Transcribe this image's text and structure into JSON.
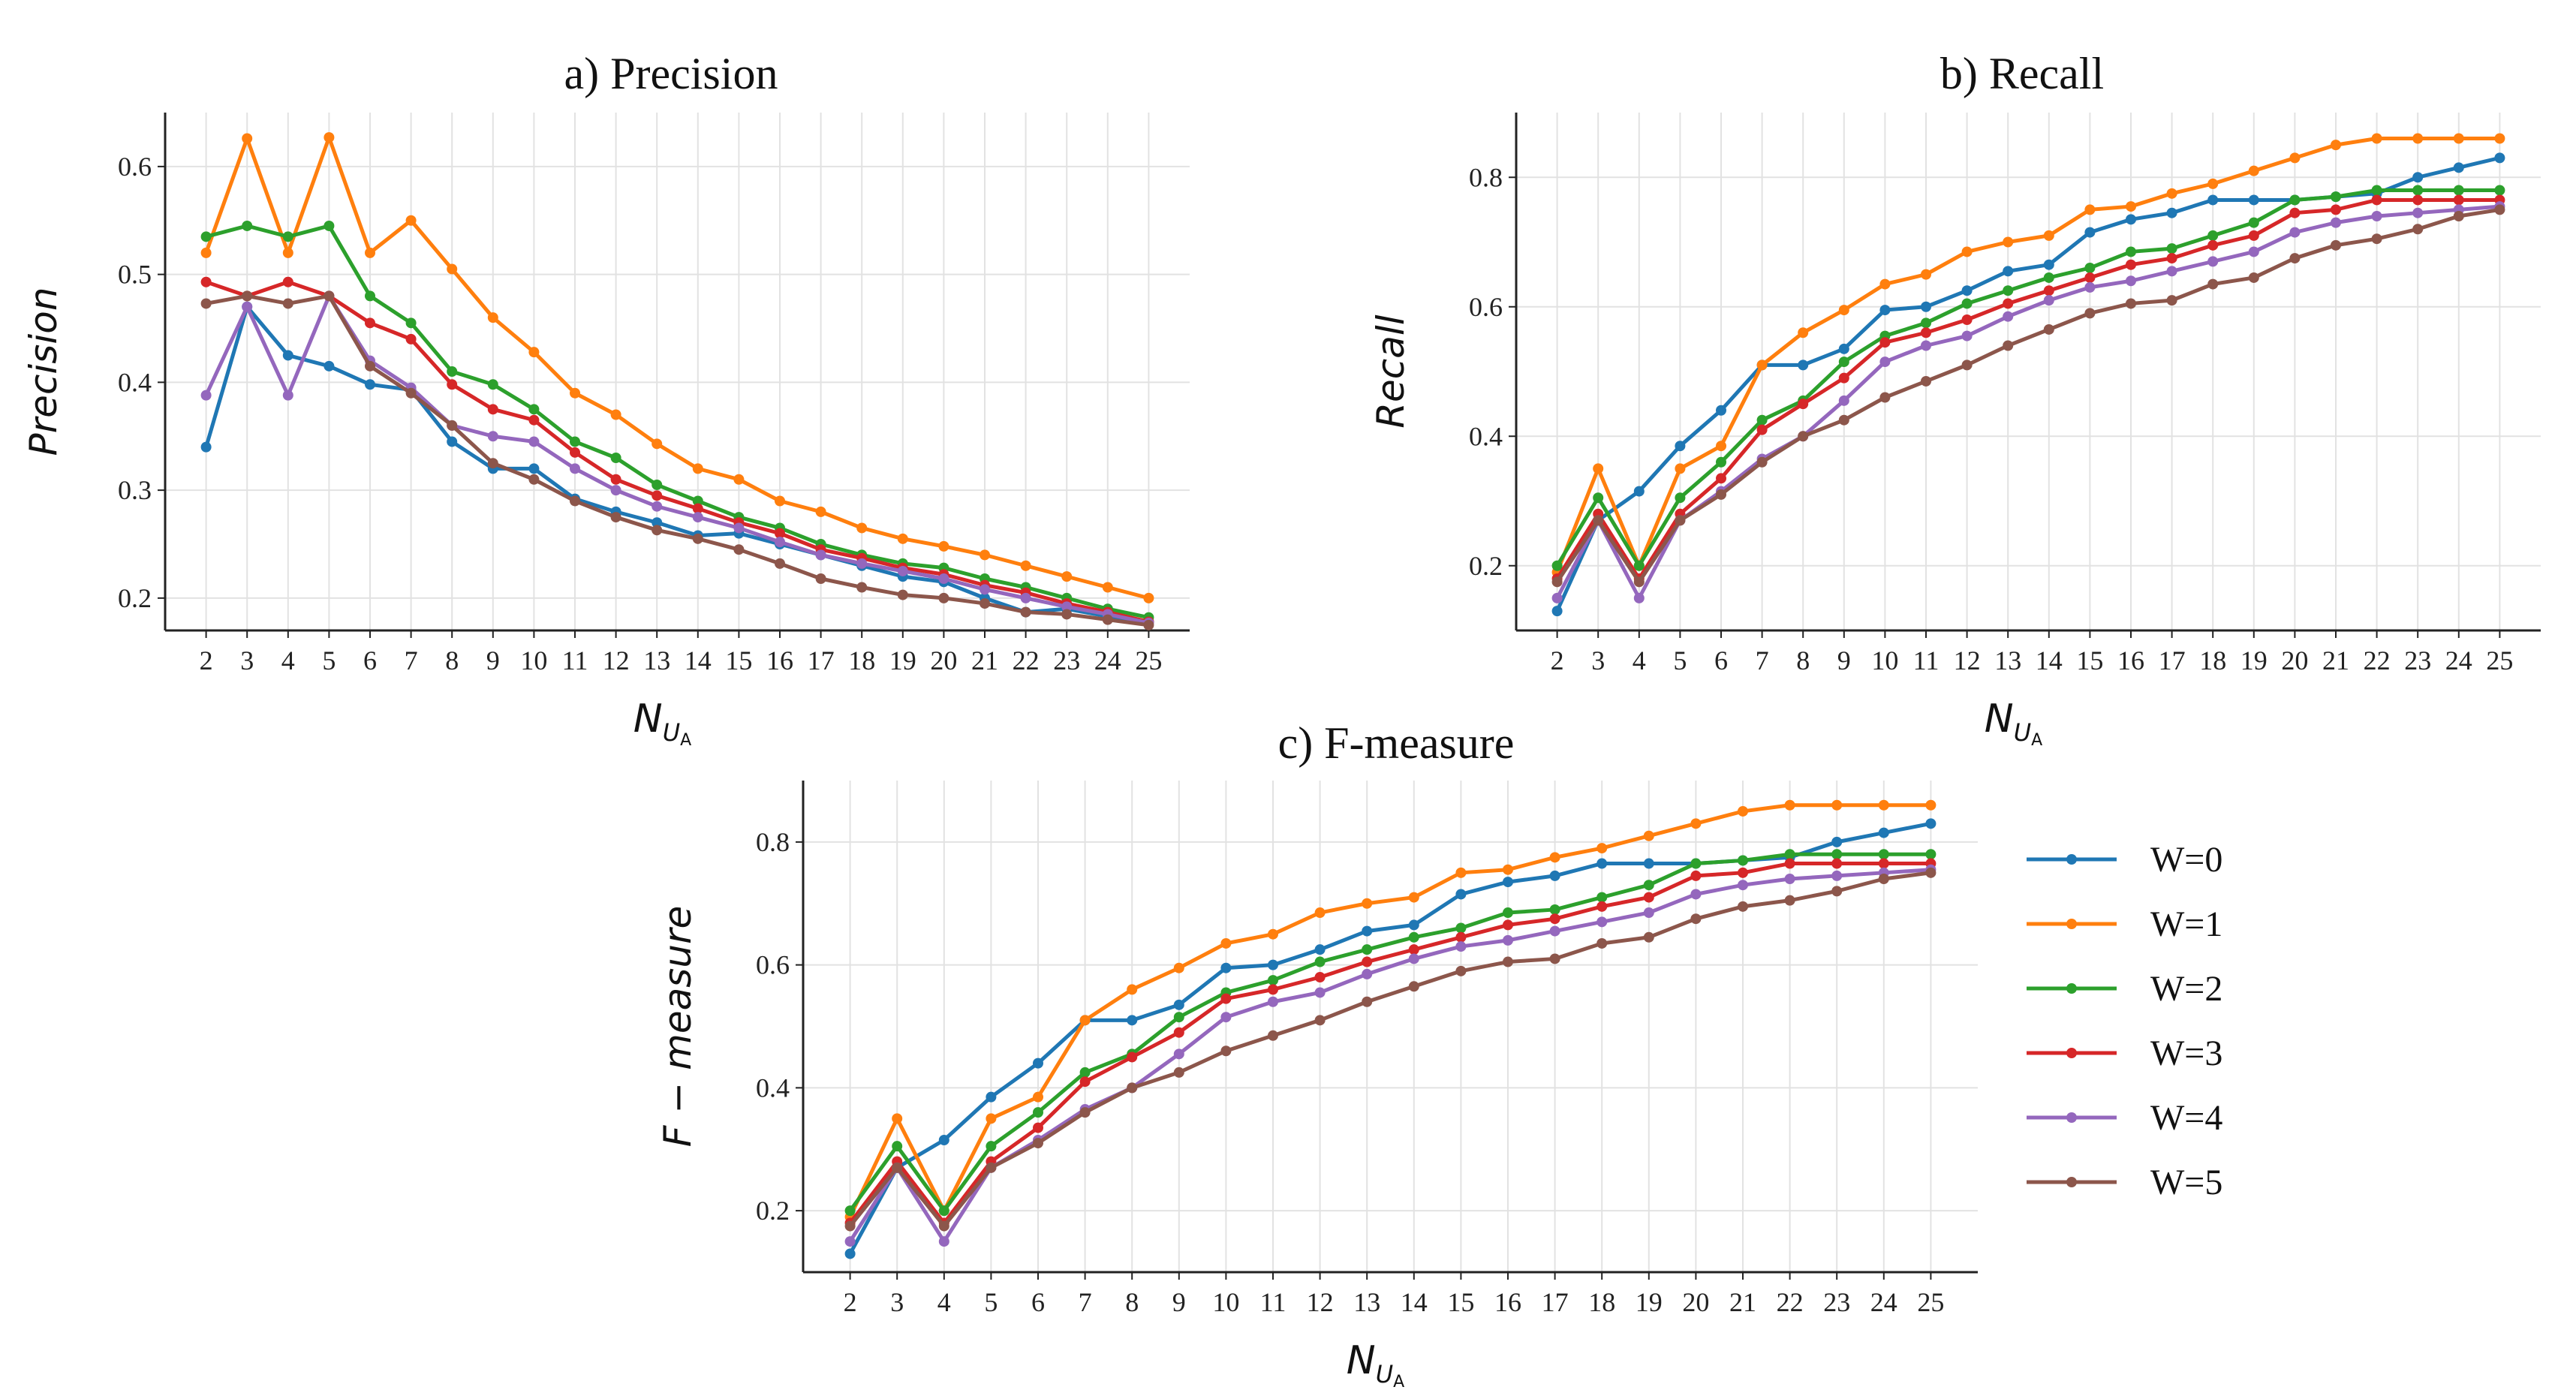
{
  "chart_data": [
    {
      "id": "precision",
      "type": "line",
      "title": "a) Precision",
      "ylabel": "Precision",
      "xlabel": "N",
      "xlabel_sub": "U",
      "xlabel_subsub": "A",
      "ylim": [
        0.17,
        0.65
      ],
      "yticks": [
        0.2,
        0.3,
        0.4,
        0.5,
        0.6
      ],
      "ytick_labels": [
        "0.2",
        "0.3",
        "0.4",
        "0.5",
        "0.6"
      ],
      "x": [
        2,
        3,
        4,
        5,
        6,
        7,
        8,
        9,
        10,
        11,
        12,
        13,
        14,
        15,
        16,
        17,
        18,
        19,
        20,
        21,
        22,
        23,
        24,
        25
      ],
      "x_labels": [
        "2",
        "3",
        "4",
        "5",
        "6",
        "7",
        "8",
        "9",
        "10",
        "11",
        "12",
        "13",
        "14",
        "15",
        "16",
        "17",
        "18",
        "19",
        "20",
        "21",
        "22",
        "23",
        "24",
        "25"
      ],
      "grid": true,
      "series": [
        {
          "name": "W=0",
          "color": "#1f77b4",
          "values": [
            0.34,
            0.47,
            0.425,
            0.415,
            0.398,
            0.393,
            0.345,
            0.32,
            0.32,
            0.292,
            0.28,
            0.27,
            0.258,
            0.26,
            0.25,
            0.24,
            0.23,
            0.22,
            0.215,
            0.2,
            0.187,
            0.19,
            0.183,
            0.178
          ]
        },
        {
          "name": "W=1",
          "color": "#ff7f0e",
          "values": [
            0.52,
            0.626,
            0.52,
            0.627,
            0.52,
            0.55,
            0.505,
            0.46,
            0.428,
            0.39,
            0.37,
            0.343,
            0.32,
            0.31,
            0.29,
            0.28,
            0.265,
            0.255,
            0.248,
            0.24,
            0.23,
            0.22,
            0.21,
            0.2
          ]
        },
        {
          "name": "W=2",
          "color": "#2ca02c",
          "values": [
            0.535,
            0.545,
            0.535,
            0.545,
            0.48,
            0.455,
            0.41,
            0.398,
            0.375,
            0.345,
            0.33,
            0.305,
            0.29,
            0.275,
            0.265,
            0.25,
            0.24,
            0.232,
            0.228,
            0.218,
            0.21,
            0.2,
            0.19,
            0.182
          ]
        },
        {
          "name": "W=3",
          "color": "#d62728",
          "values": [
            0.493,
            0.48,
            0.493,
            0.48,
            0.455,
            0.44,
            0.398,
            0.375,
            0.365,
            0.335,
            0.31,
            0.295,
            0.283,
            0.27,
            0.26,
            0.245,
            0.237,
            0.228,
            0.222,
            0.212,
            0.205,
            0.195,
            0.187,
            0.178
          ]
        },
        {
          "name": "W=4",
          "color": "#9467bd",
          "values": [
            0.388,
            0.47,
            0.388,
            0.48,
            0.42,
            0.395,
            0.36,
            0.35,
            0.345,
            0.32,
            0.3,
            0.285,
            0.275,
            0.265,
            0.252,
            0.24,
            0.232,
            0.225,
            0.218,
            0.208,
            0.2,
            0.192,
            0.185,
            0.177
          ]
        },
        {
          "name": "W=5",
          "color": "#8c564b",
          "values": [
            0.473,
            0.48,
            0.473,
            0.48,
            0.415,
            0.39,
            0.36,
            0.325,
            0.31,
            0.29,
            0.275,
            0.263,
            0.255,
            0.245,
            0.232,
            0.218,
            0.21,
            0.203,
            0.2,
            0.195,
            0.187,
            0.185,
            0.18,
            0.175
          ]
        }
      ]
    },
    {
      "id": "recall",
      "type": "line",
      "title": "b) Recall",
      "ylabel": "Recall",
      "xlabel": "N",
      "xlabel_sub": "U",
      "xlabel_subsub": "A",
      "ylim": [
        0.1,
        0.9
      ],
      "yticks": [
        0.2,
        0.4,
        0.6,
        0.8
      ],
      "ytick_labels": [
        "0.2",
        "0.4",
        "0.6",
        "0.8"
      ],
      "x": [
        2,
        3,
        4,
        5,
        6,
        7,
        8,
        9,
        10,
        11,
        12,
        13,
        14,
        15,
        16,
        17,
        18,
        19,
        20,
        21,
        22,
        23,
        24,
        25
      ],
      "x_labels": [
        "2",
        "3",
        "4",
        "5",
        "6",
        "7",
        "8",
        "9",
        "10",
        "11",
        "12",
        "13",
        "14",
        "15",
        "16",
        "17",
        "18",
        "19",
        "20",
        "21",
        "22",
        "23",
        "24",
        "25"
      ],
      "grid": true,
      "series": [
        {
          "name": "W=0",
          "color": "#1f77b4",
          "values": [
            0.13,
            0.27,
            0.315,
            0.385,
            0.44,
            0.51,
            0.51,
            0.535,
            0.595,
            0.6,
            0.625,
            0.655,
            0.665,
            0.715,
            0.735,
            0.745,
            0.765,
            0.765,
            0.765,
            0.77,
            0.775,
            0.8,
            0.815,
            0.83
          ]
        },
        {
          "name": "W=1",
          "color": "#ff7f0e",
          "values": [
            0.19,
            0.35,
            0.2,
            0.35,
            0.385,
            0.51,
            0.56,
            0.595,
            0.635,
            0.65,
            0.685,
            0.7,
            0.71,
            0.75,
            0.755,
            0.775,
            0.79,
            0.81,
            0.83,
            0.85,
            0.86,
            0.86,
            0.86,
            0.86
          ]
        },
        {
          "name": "W=2",
          "color": "#2ca02c",
          "values": [
            0.2,
            0.305,
            0.2,
            0.305,
            0.36,
            0.425,
            0.455,
            0.515,
            0.555,
            0.575,
            0.605,
            0.625,
            0.645,
            0.66,
            0.685,
            0.69,
            0.71,
            0.73,
            0.765,
            0.77,
            0.78,
            0.78,
            0.78,
            0.78
          ]
        },
        {
          "name": "W=3",
          "color": "#d62728",
          "values": [
            0.18,
            0.28,
            0.18,
            0.28,
            0.335,
            0.41,
            0.45,
            0.49,
            0.545,
            0.56,
            0.58,
            0.605,
            0.625,
            0.645,
            0.665,
            0.675,
            0.695,
            0.71,
            0.745,
            0.75,
            0.765,
            0.765,
            0.765,
            0.765
          ]
        },
        {
          "name": "W=4",
          "color": "#9467bd",
          "values": [
            0.15,
            0.27,
            0.15,
            0.27,
            0.315,
            0.365,
            0.4,
            0.455,
            0.515,
            0.54,
            0.555,
            0.585,
            0.61,
            0.63,
            0.64,
            0.655,
            0.67,
            0.685,
            0.715,
            0.73,
            0.74,
            0.745,
            0.75,
            0.755
          ]
        },
        {
          "name": "W=5",
          "color": "#8c564b",
          "values": [
            0.175,
            0.27,
            0.175,
            0.27,
            0.31,
            0.36,
            0.4,
            0.425,
            0.46,
            0.485,
            0.51,
            0.54,
            0.565,
            0.59,
            0.605,
            0.61,
            0.635,
            0.645,
            0.675,
            0.695,
            0.705,
            0.72,
            0.74,
            0.75
          ]
        }
      ]
    },
    {
      "id": "fmeasure",
      "type": "line",
      "title": "c) F-measure",
      "ylabel": "F − measure",
      "xlabel": "N",
      "xlabel_sub": "U",
      "xlabel_subsub": "A",
      "ylim": [
        0.1,
        0.9
      ],
      "yticks": [
        0.2,
        0.4,
        0.6,
        0.8
      ],
      "ytick_labels": [
        "0.2",
        "0.4",
        "0.6",
        "0.8"
      ],
      "x": [
        2,
        3,
        4,
        5,
        6,
        7,
        8,
        9,
        10,
        11,
        12,
        13,
        14,
        15,
        16,
        17,
        18,
        19,
        20,
        21,
        22,
        23,
        24,
        25
      ],
      "x_labels": [
        "2",
        "3",
        "4",
        "5",
        "6",
        "7",
        "8",
        "9",
        "10",
        "11",
        "12",
        "13",
        "14",
        "15",
        "16",
        "17",
        "18",
        "19",
        "20",
        "21",
        "22",
        "23",
        "24",
        "25"
      ],
      "grid": true,
      "series": [
        {
          "name": "W=0",
          "color": "#1f77b4",
          "values": [
            0.13,
            0.27,
            0.315,
            0.385,
            0.44,
            0.51,
            0.51,
            0.535,
            0.595,
            0.6,
            0.625,
            0.655,
            0.665,
            0.715,
            0.735,
            0.745,
            0.765,
            0.765,
            0.765,
            0.77,
            0.775,
            0.8,
            0.815,
            0.83
          ]
        },
        {
          "name": "W=1",
          "color": "#ff7f0e",
          "values": [
            0.19,
            0.35,
            0.2,
            0.35,
            0.385,
            0.51,
            0.56,
            0.595,
            0.635,
            0.65,
            0.685,
            0.7,
            0.71,
            0.75,
            0.755,
            0.775,
            0.79,
            0.81,
            0.83,
            0.85,
            0.86,
            0.86,
            0.86,
            0.86
          ]
        },
        {
          "name": "W=2",
          "color": "#2ca02c",
          "values": [
            0.2,
            0.305,
            0.2,
            0.305,
            0.36,
            0.425,
            0.455,
            0.515,
            0.555,
            0.575,
            0.605,
            0.625,
            0.645,
            0.66,
            0.685,
            0.69,
            0.71,
            0.73,
            0.765,
            0.77,
            0.78,
            0.78,
            0.78,
            0.78
          ]
        },
        {
          "name": "W=3",
          "color": "#d62728",
          "values": [
            0.18,
            0.28,
            0.18,
            0.28,
            0.335,
            0.41,
            0.45,
            0.49,
            0.545,
            0.56,
            0.58,
            0.605,
            0.625,
            0.645,
            0.665,
            0.675,
            0.695,
            0.71,
            0.745,
            0.75,
            0.765,
            0.765,
            0.765,
            0.765
          ]
        },
        {
          "name": "W=4",
          "color": "#9467bd",
          "values": [
            0.15,
            0.27,
            0.15,
            0.27,
            0.315,
            0.365,
            0.4,
            0.455,
            0.515,
            0.54,
            0.555,
            0.585,
            0.61,
            0.63,
            0.64,
            0.655,
            0.67,
            0.685,
            0.715,
            0.73,
            0.74,
            0.745,
            0.75,
            0.755
          ]
        },
        {
          "name": "W=5",
          "color": "#8c564b",
          "values": [
            0.175,
            0.27,
            0.175,
            0.27,
            0.31,
            0.36,
            0.4,
            0.425,
            0.46,
            0.485,
            0.51,
            0.54,
            0.565,
            0.59,
            0.605,
            0.61,
            0.635,
            0.645,
            0.675,
            0.695,
            0.705,
            0.72,
            0.74,
            0.75
          ]
        }
      ]
    }
  ],
  "legend": {
    "placement": "right of c) F-measure",
    "entries": [
      {
        "label": "W=0",
        "color": "#1f77b4"
      },
      {
        "label": "W=1",
        "color": "#ff7f0e"
      },
      {
        "label": "W=2",
        "color": "#2ca02c"
      },
      {
        "label": "W=3",
        "color": "#d62728"
      },
      {
        "label": "W=4",
        "color": "#9467bd"
      },
      {
        "label": "W=5",
        "color": "#8c564b"
      }
    ]
  }
}
